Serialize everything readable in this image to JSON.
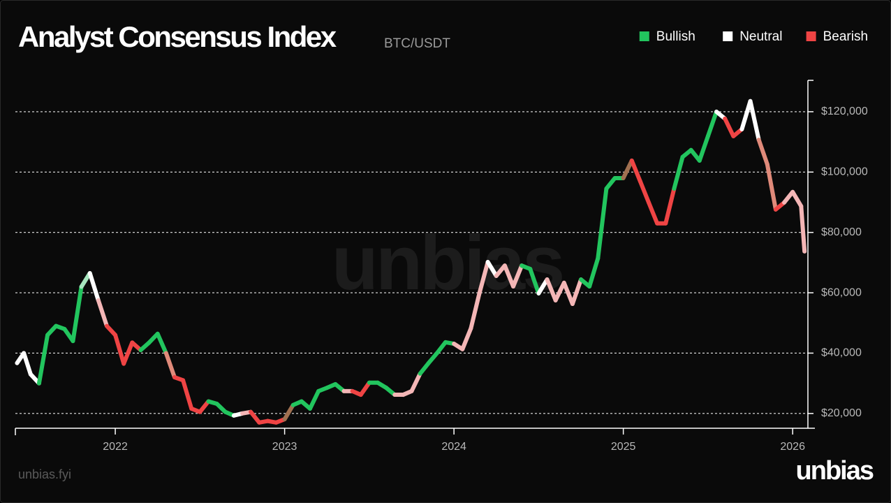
{
  "chart_data": {
    "type": "line",
    "title": "Analyst Consensus Index",
    "subtitle": "BTC/USDT",
    "watermark": "unbias",
    "footer": "unbias.fyi",
    "brand": "unbias",
    "legend": [
      {
        "name": "Bullish",
        "color": "#22c55e"
      },
      {
        "name": "Neutral",
        "color": "#ffffff"
      },
      {
        "name": "Bearish",
        "color": "#ef4444"
      }
    ],
    "legend_position": "upper right",
    "grid": true,
    "xlim": [
      2021.41,
      2026.09
    ],
    "xticks": [
      2022,
      2023,
      2024,
      2025,
      2026
    ],
    "ylim": [
      15100,
      130400
    ],
    "yticks": [
      {
        "value": 20000,
        "label": "$20,000"
      },
      {
        "value": 40000,
        "label": "$40,000"
      },
      {
        "value": 60000,
        "label": "$60,000"
      },
      {
        "value": 80000,
        "label": "$80,000"
      },
      {
        "value": 100000,
        "label": "$100,000"
      },
      {
        "value": 120000,
        "label": "$120,000"
      }
    ],
    "series": [
      {
        "name": "BTC/USDT",
        "x": [
          2021.42,
          2021.46,
          2021.5,
          2021.55,
          2021.6,
          2021.65,
          2021.7,
          2021.75,
          2021.8,
          2021.85,
          2021.9,
          2021.95,
          2022.0,
          2022.05,
          2022.1,
          2022.15,
          2022.2,
          2022.25,
          2022.3,
          2022.35,
          2022.4,
          2022.45,
          2022.5,
          2022.55,
          2022.6,
          2022.65,
          2022.7,
          2022.75,
          2022.8,
          2022.85,
          2022.9,
          2022.95,
          2023.0,
          2023.05,
          2023.1,
          2023.15,
          2023.2,
          2023.25,
          2023.3,
          2023.35,
          2023.4,
          2023.45,
          2023.5,
          2023.55,
          2023.6,
          2023.65,
          2023.7,
          2023.75,
          2023.8,
          2023.85,
          2023.9,
          2023.95,
          2024.0,
          2024.05,
          2024.1,
          2024.15,
          2024.2,
          2024.25,
          2024.3,
          2024.35,
          2024.4,
          2024.45,
          2024.5,
          2024.55,
          2024.6,
          2024.65,
          2024.7,
          2024.75,
          2024.8,
          2024.85,
          2024.9,
          2024.95,
          2025.0,
          2025.05,
          2025.1,
          2025.15,
          2025.2,
          2025.25,
          2025.3,
          2025.35,
          2025.4,
          2025.45,
          2025.5,
          2025.55,
          2025.6,
          2025.65,
          2025.7,
          2025.75,
          2025.8,
          2025.85,
          2025.9,
          2025.95,
          2026.0,
          2026.05,
          2026.07
        ],
        "values": [
          36700,
          40000,
          33000,
          30000,
          46000,
          49000,
          48000,
          44000,
          62000,
          66500,
          57500,
          49000,
          46000,
          36500,
          43500,
          41000,
          43500,
          46400,
          40000,
          32000,
          31000,
          21600,
          20500,
          24000,
          23200,
          20500,
          19300,
          20000,
          20500,
          17000,
          17500,
          17000,
          18100,
          22800,
          24000,
          21600,
          27400,
          28500,
          29700,
          27400,
          27400,
          26200,
          30200,
          30200,
          28500,
          26200,
          26200,
          27400,
          33200,
          36700,
          40000,
          43600,
          43100,
          41300,
          48200,
          59800,
          70200,
          65600,
          69000,
          62100,
          69000,
          67900,
          59800,
          64400,
          57500,
          63300,
          56300,
          64400,
          62100,
          71400,
          94500,
          98000,
          98000,
          103800,
          96900,
          89900,
          83000,
          83000,
          94500,
          105000,
          107300,
          103800,
          111900,
          120000,
          117700,
          111900,
          114200,
          123500,
          110700,
          102600,
          87600,
          89900,
          93400,
          88700,
          73700
        ],
        "colors": [
          "#ffffff",
          "#ffffff",
          "#ffffff",
          "#22c55e",
          "#22c55e",
          "#22c55e",
          "#22c55e",
          "#22c55e",
          "#a7e6bf",
          "#ffffff",
          "#f4b6b6",
          "#ef4444",
          "#ef4444",
          "#ef4444",
          "#ef4444",
          "#22c55e",
          "#22c55e",
          "#22c55e",
          "#e08a7a",
          "#ef4444",
          "#ef4444",
          "#ef4444",
          "#ef4444",
          "#22c55e",
          "#22c55e",
          "#22c55e",
          "#ffffff",
          "#f4b6b6",
          "#ef4444",
          "#ef4444",
          "#ef4444",
          "#ef4444",
          "#a07050",
          "#22c55e",
          "#22c55e",
          "#22c55e",
          "#22c55e",
          "#22c55e",
          "#22c55e",
          "#f4b6b6",
          "#ef4444",
          "#ef4444",
          "#22c55e",
          "#22c55e",
          "#22c55e",
          "#f4b6b6",
          "#f4b6b6",
          "#f4b6b6",
          "#22c55e",
          "#22c55e",
          "#22c55e",
          "#22c55e",
          "#f4b6b6",
          "#f4b6b6",
          "#f4b6b6",
          "#f4b6b6",
          "#ffffff",
          "#f4b6b6",
          "#f4b6b6",
          "#f4b6b6",
          "#22c55e",
          "#22c55e",
          "#ffffff",
          "#f4b6b6",
          "#f4b6b6",
          "#f4b6b6",
          "#f4b6b6",
          "#22c55e",
          "#22c55e",
          "#22c55e",
          "#22c55e",
          "#22c55e",
          "#a07050",
          "#ef4444",
          "#ef4444",
          "#ef4444",
          "#ef4444",
          "#ef4444",
          "#22c55e",
          "#22c55e",
          "#22c55e",
          "#22c55e",
          "#22c55e",
          "#ffffff",
          "#ef4444",
          "#ef4444",
          "#ffffff",
          "#ffffff",
          "#e08a7a",
          "#e08a7a",
          "#ef4444",
          "#f4b6b6",
          "#f4b6b6",
          "#f4b6b6",
          "#f4b6b6"
        ]
      }
    ]
  }
}
